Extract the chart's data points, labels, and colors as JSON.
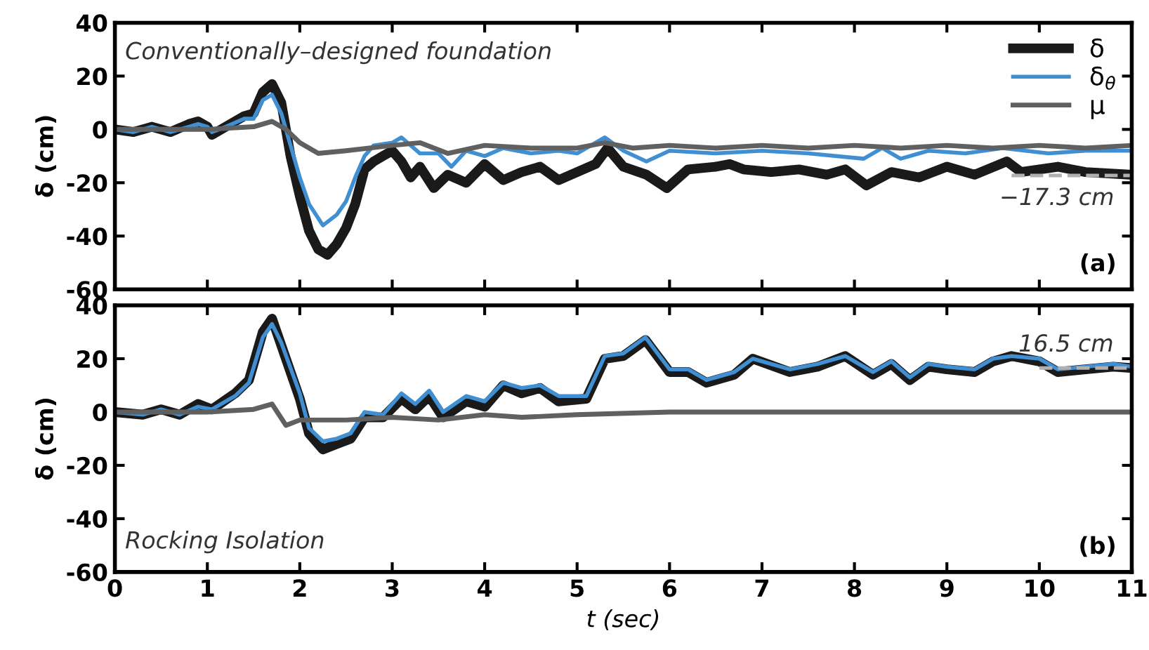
{
  "chart_data": [
    {
      "type": "line",
      "title": "Conventionally–designed foundation",
      "ylabel": "δ (cm)",
      "xlim": [
        0,
        11
      ],
      "xticks": [
        0,
        1,
        2,
        3,
        4,
        5,
        6,
        7,
        8,
        9,
        10,
        11
      ],
      "ylim": [
        -60,
        40
      ],
      "yticks": [
        -60,
        -40,
        -20,
        0,
        20,
        40
      ],
      "tick_labels": "y",
      "legend": "top right",
      "grid": false,
      "annotations": [
        "(a)",
        {
          "text": "−17.3 cm",
          "x": 10.4,
          "y": -17.3
        }
      ],
      "series": [
        {
          "name": "δ",
          "color": "#1a1a1a",
          "x": [
            0,
            0.2,
            0.4,
            0.6,
            0.8,
            0.9,
            1.0,
            1.05,
            1.2,
            1.4,
            1.5,
            1.6,
            1.7,
            1.8,
            1.9,
            2.0,
            2.1,
            2.2,
            2.3,
            2.4,
            2.5,
            2.6,
            2.7,
            2.8,
            2.9,
            3.0,
            3.1,
            3.2,
            3.3,
            3.45,
            3.6,
            3.8,
            4.0,
            4.2,
            4.4,
            4.6,
            4.8,
            5.0,
            5.2,
            5.33,
            5.5,
            5.75,
            5.97,
            6.2,
            6.5,
            6.65,
            6.8,
            7.1,
            7.4,
            7.7,
            7.9,
            8.13,
            8.4,
            8.7,
            9.0,
            9.3,
            9.65,
            9.8,
            10.2,
            10.5,
            11
          ],
          "values": [
            0,
            -1,
            1,
            -1,
            2,
            3,
            1,
            -2,
            1,
            5,
            6,
            14,
            17,
            10,
            -10,
            -25,
            -38,
            -45,
            -47,
            -43,
            -37,
            -28,
            -15,
            -12,
            -10,
            -8,
            -12,
            -18,
            -14,
            -22,
            -17,
            -20,
            -13,
            -19,
            -16,
            -14,
            -19,
            -16,
            -13,
            -7,
            -14,
            -17,
            -22,
            -15,
            -14,
            -13,
            -15,
            -16,
            -15,
            -17,
            -15,
            -21,
            -16,
            -18,
            -14,
            -17,
            -12,
            -16,
            -14,
            -16,
            -17
          ]
        },
        {
          "name": "δ$_{θ}$",
          "color": "#3f8fd2",
          "x": [
            0,
            0.2,
            0.4,
            0.6,
            0.8,
            0.9,
            1.0,
            1.05,
            1.2,
            1.4,
            1.5,
            1.6,
            1.7,
            1.8,
            1.9,
            2.0,
            2.1,
            2.25,
            2.4,
            2.5,
            2.6,
            2.7,
            2.8,
            3.0,
            3.1,
            3.3,
            3.5,
            3.64,
            3.8,
            4.0,
            4.2,
            4.5,
            4.8,
            5.0,
            5.3,
            5.5,
            5.75,
            6.0,
            6.5,
            7.0,
            7.5,
            8.1,
            8.3,
            8.5,
            8.8,
            9.2,
            9.6,
            10.1,
            10.5,
            11
          ],
          "values": [
            0,
            -1,
            1,
            -1,
            1,
            2,
            1,
            -1,
            1,
            4,
            4,
            11,
            13,
            6,
            -6,
            -18,
            -28,
            -36,
            -32,
            -27,
            -18,
            -10,
            -6,
            -5,
            -3,
            -9,
            -9,
            -14,
            -8,
            -10,
            -7,
            -9,
            -8,
            -9,
            -3,
            -8,
            -12,
            -8,
            -9,
            -8,
            -9,
            -11,
            -7,
            -11,
            -8,
            -9,
            -7,
            -9,
            -8,
            -8
          ]
        },
        {
          "name": "μ",
          "color": "#606060",
          "x": [
            0,
            0.5,
            1.0,
            1.5,
            1.7,
            1.85,
            2.0,
            2.2,
            2.5,
            3.0,
            3.3,
            3.6,
            4.0,
            4.5,
            5.0,
            5.3,
            5.6,
            6.0,
            6.5,
            7.0,
            7.5,
            8.0,
            8.5,
            9.0,
            9.5,
            10.0,
            10.5,
            11
          ],
          "values": [
            0,
            0,
            0,
            1,
            3,
            0,
            -5,
            -9,
            -8,
            -6,
            -5,
            -9,
            -6,
            -7,
            -7,
            -5,
            -7,
            -6,
            -7,
            -6,
            -7,
            -6,
            -7,
            -6,
            -7,
            -6,
            -7,
            -6
          ]
        },
        {
          "color": "#b0b0b0",
          "line_style": "dashed",
          "x": [
            9.7,
            11
          ],
          "values": [
            -17.3,
            -17.3
          ]
        }
      ]
    },
    {
      "type": "line",
      "title": "Rocking Isolation",
      "xlabel": "t (sec)",
      "ylabel": "δ (cm)",
      "xlim": [
        0,
        11
      ],
      "xticks": [
        0,
        1,
        2,
        3,
        4,
        5,
        6,
        7,
        8,
        9,
        10,
        11
      ],
      "ylim": [
        -60,
        40
      ],
      "yticks": [
        -60,
        -40,
        -20,
        0,
        20,
        40
      ],
      "grid": false,
      "annotations": [
        "(b)",
        {
          "text": "16.5 cm",
          "x": 10.5,
          "y": 16.5
        }
      ],
      "series": [
        {
          "color": "#1a1a1a",
          "x": [
            0,
            0.3,
            0.5,
            0.7,
            0.9,
            1.05,
            1.3,
            1.45,
            1.6,
            1.7,
            1.8,
            2.0,
            2.1,
            2.25,
            2.4,
            2.55,
            2.7,
            2.9,
            3.1,
            3.25,
            3.4,
            3.55,
            3.8,
            4.0,
            4.2,
            4.4,
            4.6,
            4.8,
            5.1,
            5.3,
            5.5,
            5.74,
            6.0,
            6.2,
            6.4,
            6.7,
            6.9,
            7.3,
            7.6,
            7.9,
            8.2,
            8.4,
            8.6,
            8.8,
            9.0,
            9.3,
            9.5,
            9.7,
            10.0,
            10.2,
            10.5,
            10.8,
            11
          ],
          "values": [
            0,
            -1,
            1,
            -1,
            3,
            1,
            7,
            12,
            30,
            35,
            25,
            5,
            -8,
            -14,
            -12,
            -10,
            -2,
            -2,
            5,
            1,
            6,
            -2,
            4,
            2,
            10,
            7,
            9,
            4,
            5,
            20,
            21,
            27,
            15,
            15,
            11,
            14,
            20,
            15,
            17,
            21,
            14,
            18,
            12,
            17,
            16,
            15,
            19,
            21,
            19,
            15,
            16,
            17,
            16.5
          ]
        },
        {
          "color": "#3f8fd2",
          "x": [
            0,
            0.3,
            0.5,
            0.7,
            0.9,
            1.05,
            1.3,
            1.45,
            1.6,
            1.7,
            1.8,
            2.0,
            2.1,
            2.25,
            2.4,
            2.55,
            2.7,
            2.9,
            3.1,
            3.25,
            3.4,
            3.55,
            3.8,
            4.0,
            4.2,
            4.4,
            4.6,
            4.8,
            5.1,
            5.3,
            5.5,
            5.74,
            6.0,
            6.2,
            6.4,
            6.7,
            6.9,
            7.3,
            7.6,
            7.9,
            8.2,
            8.4,
            8.6,
            8.8,
            9.0,
            9.3,
            9.5,
            9.7,
            10.0,
            10.2,
            10.5,
            10.8,
            11
          ],
          "values": [
            0,
            -1,
            1,
            -1,
            2,
            1,
            6,
            11,
            28,
            33,
            26,
            7,
            -6,
            -11,
            -10,
            -8,
            0,
            -1,
            7,
            3,
            8,
            0,
            6,
            4,
            11,
            9,
            10,
            6,
            6,
            21,
            22,
            28,
            16,
            16,
            12,
            15,
            20,
            16,
            18,
            21,
            15,
            19,
            13,
            18,
            17,
            16,
            20,
            21,
            20,
            16,
            17,
            18,
            17
          ]
        },
        {
          "color": "#606060",
          "x": [
            0,
            0.5,
            1.0,
            1.5,
            1.7,
            1.85,
            2.0,
            2.5,
            3.0,
            3.5,
            4.0,
            4.4,
            5.0,
            6.0,
            7.0,
            8.0,
            9.0,
            10.0,
            11
          ],
          "values": [
            0,
            0,
            0,
            1,
            3,
            -5,
            -3,
            -3,
            -2,
            -3,
            -1,
            -2,
            -1,
            0,
            0,
            0,
            0,
            0,
            0
          ]
        },
        {
          "color": "#b0b0b0",
          "line_style": "dashed",
          "x": [
            10.0,
            11
          ],
          "values": [
            16.5,
            16.5
          ]
        }
      ]
    }
  ]
}
